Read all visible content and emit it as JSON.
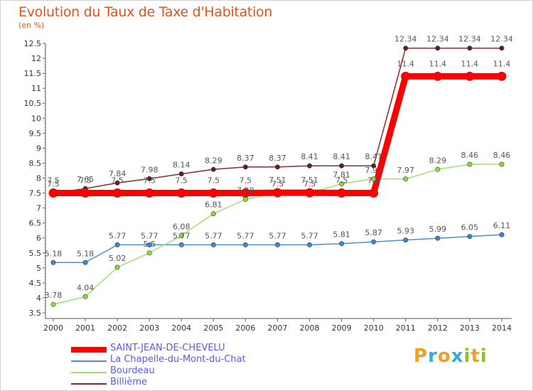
{
  "title": "Evolution du Taux de Taxe d'Habitation",
  "unit_label": "(en %)",
  "brand": {
    "letters": [
      "P",
      "r",
      "o",
      "x",
      "i",
      "t",
      "i"
    ],
    "colors": [
      "#f0a020",
      "#3aa8d8",
      "#f0a020",
      "#3aa8d8",
      "#90c030",
      "#f0a020",
      "#90c030"
    ]
  },
  "chart_data": {
    "type": "line",
    "title": "Evolution du Taux de Taxe d'Habitation",
    "ylabel": "(en %)",
    "xlabel": "",
    "x": [
      "2000",
      "2001",
      "2002",
      "2003",
      "2004",
      "2005",
      "2006",
      "2007",
      "2008",
      "2009",
      "2010",
      "2011",
      "2012",
      "2013",
      "2014"
    ],
    "ylim": [
      3.5,
      12.5
    ],
    "yticks": [
      "3.5",
      "4",
      "4.5",
      "5",
      "5.5",
      "6",
      "6.5",
      "7",
      "7.5",
      "8",
      "8.5",
      "9",
      "9.5",
      "10",
      "10.5",
      "11",
      "11.5",
      "12",
      "12.5"
    ],
    "grid": false,
    "legend_position": "bottom-left",
    "series": [
      {
        "name": "SAINT-JEAN-DE-CHEVELU",
        "color": "#ff0000",
        "values": [
          7.5,
          7.5,
          7.5,
          7.5,
          7.5,
          7.5,
          7.5,
          7.51,
          7.51,
          7.5,
          7.5,
          11.4,
          11.4,
          11.4,
          11.4
        ],
        "labels": [
          "7.5",
          "7.5",
          "7.5",
          "7.5",
          "7.5",
          "7.5",
          "7.5",
          "7.51",
          "7.51",
          "7.5",
          "7.5",
          "11.4",
          "11.4",
          "11.4",
          "11.4"
        ]
      },
      {
        "name": "La Chapelle-du-Mont-du-Chat",
        "color": "#4f8fcf",
        "values": [
          5.18,
          5.18,
          5.77,
          5.77,
          5.77,
          5.77,
          5.77,
          5.77,
          5.77,
          5.81,
          5.87,
          5.93,
          5.99,
          6.05,
          6.11
        ],
        "labels": [
          "5.18",
          "5.18",
          "5.77",
          "5.77",
          "5.77",
          "5.77",
          "5.77",
          "5.77",
          "5.77",
          "5.81",
          "5.87",
          "5.93",
          "5.99",
          "6.05",
          "6.11"
        ]
      },
      {
        "name": "Bourdeau",
        "color": "#a0e070",
        "values": [
          3.78,
          4.04,
          5.02,
          5.5,
          6.08,
          6.81,
          7.29,
          7.5,
          7.5,
          7.81,
          7.97,
          7.97,
          8.29,
          8.46,
          8.46
        ],
        "labels": [
          "3.78",
          "4.04",
          "5.02",
          "5.5",
          "6.08",
          "6.81",
          "7.29",
          "7.5",
          "7.5",
          "7.81",
          "7.97",
          "7.97",
          "8.29",
          "8.46",
          "8.46"
        ]
      },
      {
        "name": "Billième",
        "color": "#8b2a2a",
        "values": [
          7.5,
          7.65,
          7.84,
          7.98,
          8.14,
          8.29,
          8.37,
          8.37,
          8.41,
          8.41,
          8.41,
          12.34,
          12.34,
          12.34,
          12.34
        ],
        "labels": [
          "7.5",
          "7.65",
          "7.84",
          "7.98",
          "8.14",
          "8.29",
          "8.37",
          "8.37",
          "8.41",
          "8.41",
          "8.41",
          "12.34",
          "12.34",
          "12.34",
          "12.34"
        ]
      }
    ]
  }
}
